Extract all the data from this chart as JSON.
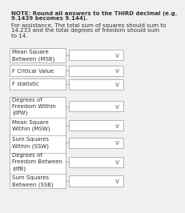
{
  "note_line1": "NOTE: Round all answers to the THIRD decimal (e.g.",
  "note_line2": "9.1439 becomes 9.144).",
  "assist_line1": "For assistance, The total sum of squares should sum to",
  "assist_line2": "14.233 and the total degrees of freedom should sum",
  "assist_line3": "to 14.",
  "rows_top": [
    {
      "label": "Mean Square\nBetween (MSB)",
      "lines": 2
    },
    {
      "label": "F Critical Value",
      "lines": 1
    },
    {
      "label": "F statistic",
      "lines": 1
    }
  ],
  "rows_bottom": [
    {
      "label": "Degrees of\nFreedom Within\n(dfW)",
      "lines": 3
    },
    {
      "label": "Mean Square\nWithin (MSW)",
      "lines": 2
    },
    {
      "label": "Sum Squares\nWithin (SSW)",
      "lines": 2
    },
    {
      "label": "Degrees of\nFreedom Between\n(dfB)",
      "lines": 3
    },
    {
      "label": "Sum Squares\nBetween (SSB)",
      "lines": 2
    }
  ],
  "bg_color": "#f0f0f0",
  "box_fill": "#ffffff",
  "box_border": "#aaaaaa",
  "text_color": "#333333",
  "note_fontsize": 5.0,
  "label_fontsize": 5.0,
  "chevron": "v"
}
